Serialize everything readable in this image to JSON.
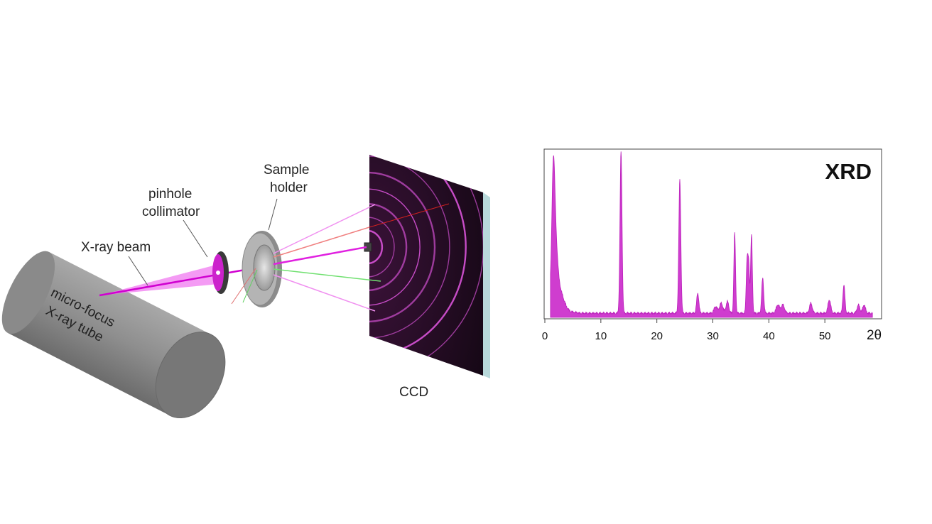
{
  "labels": {
    "xray_beam": "X-ray beam",
    "pinhole_1": "pinhole",
    "pinhole_2": "collimator",
    "sample_1": "Sample",
    "sample_2": "holder",
    "tube_1": "micro-focus",
    "tube_2": "X-ray tube",
    "ccd": "CCD"
  },
  "colors": {
    "beam": "#e040e0",
    "tube": "#8c8c8c",
    "ccd_bg": "#1a0a1a",
    "ring": "#d050d0",
    "spectrum": "#cc33cc"
  },
  "chart_data": {
    "type": "line",
    "title": "XRD",
    "xlabel": "2θ",
    "ylabel": "",
    "xlim": [
      0,
      60
    ],
    "ylim": [
      0,
      100
    ],
    "x_ticks": [
      "0",
      "10",
      "20",
      "30",
      "40",
      "50",
      "2θ"
    ],
    "grid": false,
    "baseline": 2,
    "peaks": [
      {
        "x": 1.5,
        "y": 55,
        "w": 0.25
      },
      {
        "x": 1.8,
        "y": 35,
        "w": 0.4
      },
      {
        "x": 2.5,
        "y": 12,
        "w": 0.8
      },
      {
        "x": 13.6,
        "y": 97,
        "w": 0.18
      },
      {
        "x": 24.1,
        "y": 80,
        "w": 0.18
      },
      {
        "x": 27.3,
        "y": 12,
        "w": 0.2
      },
      {
        "x": 30.5,
        "y": 4,
        "w": 0.3
      },
      {
        "x": 31.5,
        "y": 6,
        "w": 0.3
      },
      {
        "x": 32.6,
        "y": 7,
        "w": 0.25
      },
      {
        "x": 33.9,
        "y": 48,
        "w": 0.15
      },
      {
        "x": 36.1,
        "y": 30,
        "w": 0.15
      },
      {
        "x": 36.4,
        "y": 28,
        "w": 0.15
      },
      {
        "x": 36.9,
        "y": 47,
        "w": 0.15
      },
      {
        "x": 38.9,
        "y": 21,
        "w": 0.18
      },
      {
        "x": 41.6,
        "y": 5,
        "w": 0.3
      },
      {
        "x": 42.5,
        "y": 5,
        "w": 0.3
      },
      {
        "x": 47.5,
        "y": 6,
        "w": 0.25
      },
      {
        "x": 50.8,
        "y": 8,
        "w": 0.25
      },
      {
        "x": 53.4,
        "y": 17,
        "w": 0.18
      },
      {
        "x": 56.0,
        "y": 5,
        "w": 0.25
      },
      {
        "x": 57.0,
        "y": 5,
        "w": 0.25
      }
    ]
  }
}
